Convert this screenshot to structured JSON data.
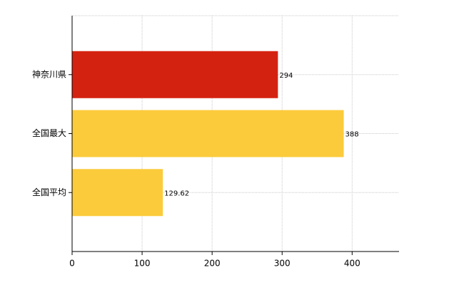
{
  "chart_data": {
    "type": "bar",
    "orientation": "horizontal",
    "categories": [
      "神奈川県",
      "全国最大",
      "全国平均"
    ],
    "values": [
      294,
      388,
      129.62
    ],
    "colors": [
      "#d42211",
      "#fbcb3b",
      "#fbcb3b"
    ],
    "xlim": [
      0,
      467
    ],
    "xticks": [
      0,
      100,
      200,
      300,
      400
    ],
    "grid": true
  }
}
